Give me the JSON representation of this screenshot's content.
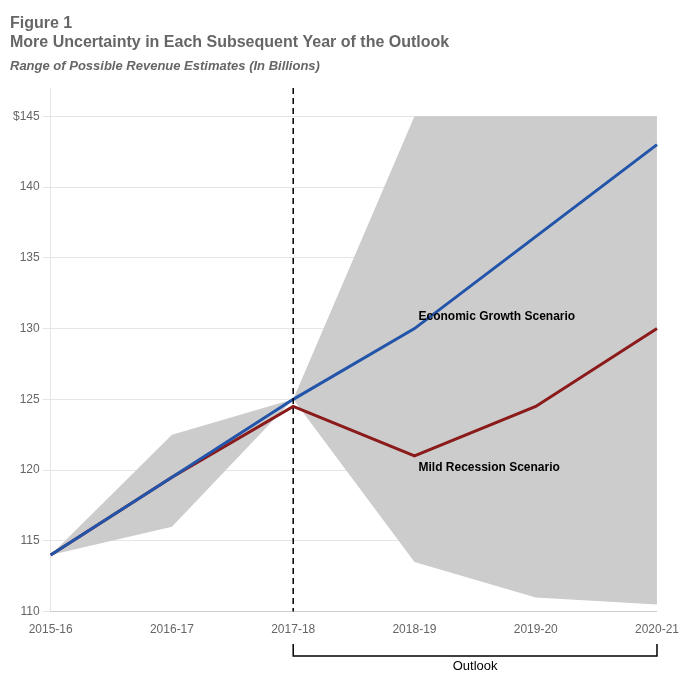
{
  "chart_data": {
    "type": "line",
    "figure_label": "Figure 1",
    "title": "More Uncertainty in Each Subsequent Year of the Outlook",
    "subtitle": "Range of Possible Revenue Estimates (In Billions)",
    "categories": [
      "2015-16",
      "2016-17",
      "2017-18",
      "2018-19",
      "2019-20",
      "2020-21"
    ],
    "series": [
      {
        "name": "Economic Growth Scenario",
        "color": "#2255aa",
        "values": [
          114.0,
          119.5,
          125.0,
          130.0,
          136.5,
          143.0
        ]
      },
      {
        "name": "Mild Recession Scenario",
        "color": "#8b1a1a",
        "values": [
          114.0,
          119.5,
          124.5,
          121.0,
          124.5,
          130.0
        ]
      }
    ],
    "band": {
      "upper": [
        114.0,
        122.5,
        125.0,
        145.0,
        145.0,
        145.0
      ],
      "lower": [
        114.0,
        116.0,
        125.0,
        113.5,
        111.0,
        110.5
      ],
      "color": "#cccccc"
    },
    "reference_line": {
      "x": "2017-18",
      "line_style": "dashed"
    },
    "annotations": [
      {
        "text": "Outlook",
        "from": "2017-18",
        "to": "2020-21"
      }
    ],
    "ylim": [
      110,
      147
    ],
    "yticks": [
      110,
      115,
      120,
      125,
      130,
      135,
      140,
      {
        "value": 145,
        "label": "$145"
      }
    ],
    "grid": true,
    "legend": false
  }
}
